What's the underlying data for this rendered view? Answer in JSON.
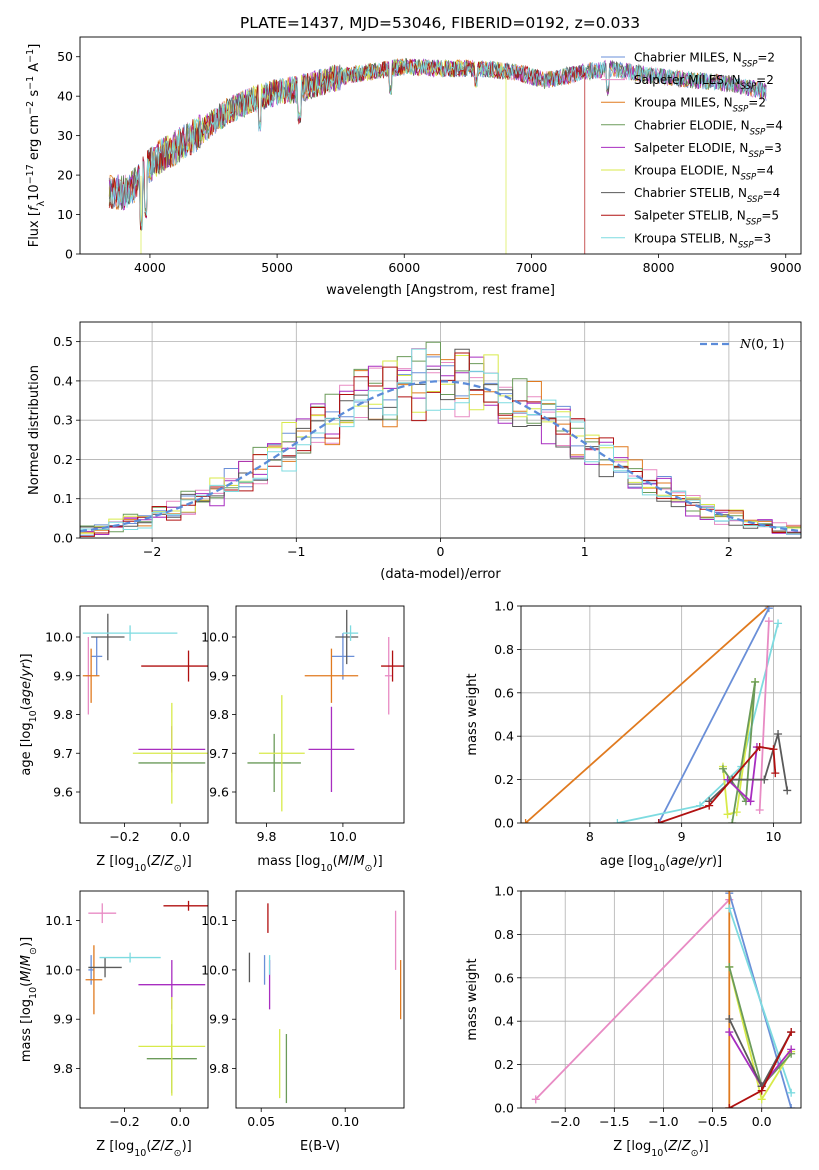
{
  "figure": {
    "title": "PLATE=1437, MJD=53046, FIBERID=0192, z=0.033",
    "legend_normal": "N(0,1)"
  },
  "colors": {
    "Chabrier MILES": "#6a8fd8",
    "Salpeter MILES": "#e88bc4",
    "Kroupa MILES": "#e07a1f",
    "Chabrier ELODIE": "#6b9b5a",
    "Salpeter ELODIE": "#a82ec0",
    "Kroupa ELODIE": "#d8ea4a",
    "Chabrier STELIB": "#5a5a5a",
    "Salpeter STELIB": "#b01010",
    "Kroupa STELIB": "#7ddbe0"
  },
  "chart_data": [
    {
      "id": "spectrum",
      "type": "line",
      "xlabel": "wavelength [Angstrom, rest frame]",
      "ylabel": "Flux [f_λ 10^-17 erg cm^-2 s^-1 A^-1]",
      "xlim": [
        3450,
        9120
      ],
      "ylim": [
        0,
        55
      ],
      "xticks": [
        4000,
        5000,
        6000,
        7000,
        8000,
        9000
      ],
      "yticks": [
        0,
        10,
        20,
        30,
        40,
        50
      ],
      "legend_loc": "upper right",
      "legend": [
        {
          "model": "Chabrier MILES",
          "label": "Chabrier MILES, N",
          "sub": "SSP",
          "n": "=2"
        },
        {
          "model": "Salpeter MILES",
          "label": "Salpeter MILES, N",
          "sub": "SSP",
          "n": "=2"
        },
        {
          "model": "Kroupa MILES",
          "label": "Kroupa MILES, N",
          "sub": "SSP",
          "n": "=2"
        },
        {
          "model": "Chabrier ELODIE",
          "label": "Chabrier ELODIE, N",
          "sub": "SSP",
          "n": "=4"
        },
        {
          "model": "Salpeter ELODIE",
          "label": "Salpeter ELODIE, N",
          "sub": "SSP",
          "n": "=3"
        },
        {
          "model": "Kroupa ELODIE",
          "label": "Kroupa ELODIE, N",
          "sub": "SSP",
          "n": "=4"
        },
        {
          "model": "Chabrier STELIB",
          "label": "Chabrier STELIB, N",
          "sub": "SSP",
          "n": "=4"
        },
        {
          "model": "Salpeter STELIB",
          "label": "Salpeter STELIB, N",
          "sub": "SSP",
          "n": "=5"
        },
        {
          "model": "Kroupa STELIB",
          "label": "Kroupa STELIB, N",
          "sub": "SSP",
          "n": "=3"
        }
      ],
      "continuum": [
        [
          3680,
          16
        ],
        [
          3800,
          15.5
        ],
        [
          3900,
          18
        ],
        [
          3950,
          21
        ],
        [
          4050,
          24
        ],
        [
          4200,
          27
        ],
        [
          4400,
          31
        ],
        [
          4600,
          36
        ],
        [
          4800,
          39
        ],
        [
          5000,
          41
        ],
        [
          5200,
          42
        ],
        [
          5500,
          45
        ],
        [
          5800,
          46.5
        ],
        [
          6000,
          47.5
        ],
        [
          6300,
          47
        ],
        [
          6600,
          47
        ],
        [
          6900,
          46
        ],
        [
          7100,
          44
        ],
        [
          7400,
          46
        ],
        [
          7600,
          47
        ],
        [
          7800,
          46
        ],
        [
          8000,
          45
        ],
        [
          8300,
          44
        ],
        [
          8600,
          43
        ],
        [
          8850,
          41
        ]
      ],
      "line_dips": [
        {
          "x": 3934,
          "y": 6
        },
        {
          "x": 3969,
          "y": 9
        },
        {
          "x": 4861,
          "y": 31
        },
        {
          "x": 5175,
          "y": 33
        },
        {
          "x": 5893,
          "y": 40
        },
        {
          "x": 6563,
          "y": 42
        },
        {
          "x": 7600,
          "y": 40
        }
      ],
      "model_cutoffs": [
        {
          "model": "Kroupa ELODIE",
          "start": 3930,
          "end": 6800
        },
        {
          "model": "Salpeter STELIB",
          "start": 3650,
          "end": 7420
        },
        {
          "model": "Kroupa STELIB",
          "start": 3690,
          "end": 9000
        }
      ]
    },
    {
      "id": "residuals",
      "type": "histogram",
      "xlabel": "(data-model)/error",
      "ylabel": "Normed distribution",
      "xlim": [
        -2.5,
        2.5
      ],
      "ylim": [
        0,
        0.55
      ],
      "xticks": [
        -2,
        -1,
        0,
        1,
        2
      ],
      "yticks": [
        0.0,
        0.1,
        0.2,
        0.3,
        0.4,
        0.5
      ],
      "grid": true,
      "bin_width": 0.1,
      "bin_start": -2.6,
      "normal_curve": {
        "mean": 0,
        "sigma": 1,
        "color": "#5b8bd9",
        "style": "dashed"
      },
      "legend_loc": "upper right"
    },
    {
      "id": "age-vs-Z",
      "type": "scatter",
      "xlabel": "Z [log10(Z/Z_sun)]",
      "ylabel": "age [log10(age/yr)]",
      "xlim": [
        -0.36,
        0.1
      ],
      "ylim": [
        9.52,
        10.08
      ],
      "xticks": [
        -0.2,
        0.0
      ],
      "yticks": [
        9.6,
        9.7,
        9.8,
        9.9,
        10.0
      ],
      "points": [
        {
          "model": "Chabrier MILES",
          "x": -0.3,
          "y": 9.95,
          "xerr": 0.02,
          "yerr": 0.05
        },
        {
          "model": "Salpeter MILES",
          "x": -0.33,
          "y": 9.9,
          "xerr": 0.01,
          "yerr": 0.1
        },
        {
          "model": "Kroupa MILES",
          "x": -0.32,
          "y": 9.9,
          "xerr": 0.03,
          "yerr": 0.07
        },
        {
          "model": "Chabrier ELODIE",
          "x": -0.03,
          "y": 9.675,
          "xerr": 0.12,
          "yerr": 0.02
        },
        {
          "model": "Salpeter ELODIE",
          "x": -0.03,
          "y": 9.71,
          "xerr": 0.12,
          "yerr": 0.06
        },
        {
          "model": "Kroupa ELODIE",
          "x": -0.03,
          "y": 9.7,
          "xerr": 0.14,
          "yerr": 0.13
        },
        {
          "model": "Chabrier STELIB",
          "x": -0.26,
          "y": 10.0,
          "xerr": 0.06,
          "yerr": 0.06
        },
        {
          "model": "Salpeter STELIB",
          "x": 0.03,
          "y": 9.925,
          "xerr": 0.17,
          "yerr": 0.04
        },
        {
          "model": "Kroupa STELIB",
          "x": -0.18,
          "y": 10.01,
          "xerr": 0.17,
          "yerr": 0.02
        }
      ]
    },
    {
      "id": "age-vs-mass",
      "type": "scatter",
      "xlabel": "mass [log10(M/M_sun)]",
      "ylabel": "",
      "xlim": [
        9.72,
        10.16
      ],
      "ylim": [
        9.52,
        10.08
      ],
      "xticks": [
        9.8,
        10.0
      ],
      "yticks": [
        9.6,
        9.7,
        9.8,
        9.9,
        10.0
      ],
      "points": [
        {
          "model": "Chabrier MILES",
          "x": 10.0,
          "y": 9.95,
          "xerr": 0.03,
          "yerr": 0.06
        },
        {
          "model": "Salpeter MILES",
          "x": 10.12,
          "y": 9.9,
          "xerr": 0.01,
          "yerr": 0.1
        },
        {
          "model": "Kroupa MILES",
          "x": 9.97,
          "y": 9.9,
          "xerr": 0.07,
          "yerr": 0.07
        },
        {
          "model": "Chabrier ELODIE",
          "x": 9.82,
          "y": 9.675,
          "xerr": 0.07,
          "yerr": 0.075
        },
        {
          "model": "Salpeter ELODIE",
          "x": 9.97,
          "y": 9.71,
          "xerr": 0.06,
          "yerr": 0.11
        },
        {
          "model": "Kroupa ELODIE",
          "x": 9.84,
          "y": 9.7,
          "xerr": 0.06,
          "yerr": 0.15
        },
        {
          "model": "Chabrier STELIB",
          "x": 10.01,
          "y": 10.0,
          "xerr": 0.03,
          "yerr": 0.07
        },
        {
          "model": "Salpeter STELIB",
          "x": 10.13,
          "y": 9.925,
          "xerr": 0.03,
          "yerr": 0.04
        },
        {
          "model": "Kroupa STELIB",
          "x": 10.02,
          "y": 10.01,
          "xerr": 0.02,
          "yerr": 0.02
        }
      ]
    },
    {
      "id": "weight-vs-age",
      "type": "line",
      "xlabel": "age [log10(age/yr)]",
      "ylabel": "mass weight",
      "xlim": [
        7.25,
        10.3
      ],
      "ylim": [
        0,
        1
      ],
      "xticks": [
        8,
        9,
        10
      ],
      "yticks": [
        0.0,
        0.2,
        0.4,
        0.6,
        0.8,
        1.0
      ],
      "grid": true,
      "series": [
        {
          "model": "Kroupa MILES",
          "x": [
            7.3,
            9.95
          ],
          "y": [
            0.0,
            1.0
          ]
        },
        {
          "model": "Chabrier MILES",
          "x": [
            8.75,
            9.95
          ],
          "y": [
            0.0,
            0.99
          ]
        },
        {
          "model": "Kroupa STELIB",
          "x": [
            8.3,
            9.2,
            9.65,
            10.05
          ],
          "y": [
            0.0,
            0.08,
            0.26,
            0.92
          ]
        },
        {
          "model": "Salpeter MILES",
          "x": [
            9.85,
            9.95
          ],
          "y": [
            0.06,
            0.93
          ]
        },
        {
          "model": "Kroupa ELODIE",
          "x": [
            9.45,
            9.5,
            9.6,
            9.8
          ],
          "y": [
            0.26,
            0.04,
            0.05,
            0.65
          ]
        },
        {
          "model": "Chabrier ELODIE",
          "x": [
            9.45,
            9.7,
            9.8,
            9.55
          ],
          "y": [
            0.25,
            0.1,
            0.65,
            0.0
          ]
        },
        {
          "model": "Salpeter ELODIE",
          "x": [
            9.5,
            9.75,
            9.82
          ],
          "y": [
            0.2,
            0.1,
            0.35
          ]
        },
        {
          "model": "Chabrier STELIB",
          "x": [
            9.3,
            9.55,
            9.9,
            10.05,
            10.15
          ],
          "y": [
            0.1,
            0.2,
            0.2,
            0.41,
            0.15
          ]
        },
        {
          "model": "Salpeter STELIB",
          "x": [
            8.75,
            9.3,
            9.85,
            10.0,
            10.02
          ],
          "y": [
            0.0,
            0.08,
            0.35,
            0.34,
            0.23
          ]
        }
      ]
    },
    {
      "id": "mass-vs-Z",
      "type": "scatter",
      "xlabel": "Z [log10(Z/Z_sun)]",
      "ylabel": "mass [log10(M/M_sun)]",
      "xlim": [
        -0.36,
        0.1
      ],
      "ylim": [
        9.72,
        10.16
      ],
      "xticks": [
        -0.2,
        0.0
      ],
      "yticks": [
        9.8,
        9.9,
        10.0,
        10.1
      ],
      "points": [
        {
          "model": "Chabrier MILES",
          "x": -0.32,
          "y": 10.0,
          "xerr": 0.01,
          "yerr": 0.03
        },
        {
          "model": "Salpeter MILES",
          "x": -0.28,
          "y": 10.115,
          "xerr": 0.05,
          "yerr": 0.02
        },
        {
          "model": "Kroupa MILES",
          "x": -0.31,
          "y": 9.98,
          "xerr": 0.03,
          "yerr": 0.07
        },
        {
          "model": "Chabrier ELODIE",
          "x": -0.03,
          "y": 9.82,
          "xerr": 0.09,
          "yerr": 0.07
        },
        {
          "model": "Salpeter ELODIE",
          "x": -0.03,
          "y": 9.97,
          "xerr": 0.12,
          "yerr": 0.05
        },
        {
          "model": "Kroupa ELODIE",
          "x": -0.03,
          "y": 9.845,
          "xerr": 0.12,
          "yerr": 0.1
        },
        {
          "model": "Chabrier STELIB",
          "x": -0.27,
          "y": 10.005,
          "xerr": 0.06,
          "yerr": 0.02
        },
        {
          "model": "Salpeter STELIB",
          "x": 0.03,
          "y": 10.13,
          "xerr": 0.09,
          "yerr": 0.01
        },
        {
          "model": "Kroupa STELIB",
          "x": -0.18,
          "y": 10.025,
          "xerr": 0.11,
          "yerr": 0.01
        }
      ]
    },
    {
      "id": "mass-vs-ebv",
      "type": "scatter",
      "xlabel": "E(B-V)",
      "ylabel": "",
      "xlim": [
        0.035,
        0.135
      ],
      "ylim": [
        9.72,
        10.16
      ],
      "xticks": [
        0.05,
        0.1
      ],
      "yticks": [
        9.8,
        9.9,
        10.0,
        10.1
      ],
      "points": [
        {
          "model": "Chabrier MILES",
          "x": 0.052,
          "y": 10.0,
          "xerr": 0.0,
          "yerr": 0.03
        },
        {
          "model": "Salpeter MILES",
          "x": 0.13,
          "y": 10.06,
          "xerr": 0.0,
          "yerr": 0.06
        },
        {
          "model": "Kroupa MILES",
          "x": 0.133,
          "y": 9.96,
          "xerr": 0.0,
          "yerr": 0.06
        },
        {
          "model": "Chabrier ELODIE",
          "x": 0.065,
          "y": 9.8,
          "xerr": 0.0,
          "yerr": 0.07
        },
        {
          "model": "Salpeter ELODIE",
          "x": 0.055,
          "y": 9.97,
          "xerr": 0.0,
          "yerr": 0.05
        },
        {
          "model": "Kroupa ELODIE",
          "x": 0.061,
          "y": 9.81,
          "xerr": 0.0,
          "yerr": 0.07
        },
        {
          "model": "Chabrier STELIB",
          "x": 0.043,
          "y": 10.005,
          "xerr": 0.0,
          "yerr": 0.03
        },
        {
          "model": "Salpeter STELIB",
          "x": 0.054,
          "y": 10.105,
          "xerr": 0.0,
          "yerr": 0.03
        },
        {
          "model": "Kroupa STELIB",
          "x": 0.055,
          "y": 10.01,
          "xerr": 0.0,
          "yerr": 0.02
        }
      ]
    },
    {
      "id": "weight-vs-Z",
      "type": "line",
      "xlabel": "Z [log10(Z/Z_sun)]",
      "ylabel": "mass weight",
      "xlim": [
        -2.45,
        0.4
      ],
      "ylim": [
        0,
        1
      ],
      "xticks": [
        -2.0,
        -1.5,
        -1.0,
        -0.5,
        0.0
      ],
      "yticks": [
        0.0,
        0.2,
        0.4,
        0.6,
        0.8,
        1.0
      ],
      "grid": true,
      "series": [
        {
          "model": "Salpeter MILES",
          "x": [
            -2.3,
            -0.33
          ],
          "y": [
            0.04,
            0.96
          ]
        },
        {
          "model": "Chabrier MILES",
          "x": [
            -0.33,
            0.3
          ],
          "y": [
            0.99,
            0.0
          ]
        },
        {
          "model": "Kroupa MILES",
          "x": [
            -0.33,
            -0.33
          ],
          "y": [
            1.0,
            0.0
          ]
        },
        {
          "model": "Kroupa STELIB",
          "x": [
            -0.33,
            0.3
          ],
          "y": [
            0.92,
            0.07
          ]
        },
        {
          "model": "Kroupa ELODIE",
          "x": [
            -0.33,
            0.0,
            0.3
          ],
          "y": [
            0.65,
            0.04,
            0.26
          ]
        },
        {
          "model": "Chabrier ELODIE",
          "x": [
            -0.33,
            0.0,
            0.3
          ],
          "y": [
            0.65,
            0.1,
            0.25
          ]
        },
        {
          "model": "Salpeter ELODIE",
          "x": [
            -0.33,
            0.0,
            0.3
          ],
          "y": [
            0.35,
            0.1,
            0.27
          ]
        },
        {
          "model": "Chabrier STELIB",
          "x": [
            -0.33,
            0.0,
            0.3
          ],
          "y": [
            0.41,
            0.1,
            0.35
          ]
        },
        {
          "model": "Salpeter STELIB",
          "x": [
            -0.33,
            0.0,
            0.3
          ],
          "y": [
            0.0,
            0.08,
            0.35
          ]
        }
      ]
    }
  ]
}
